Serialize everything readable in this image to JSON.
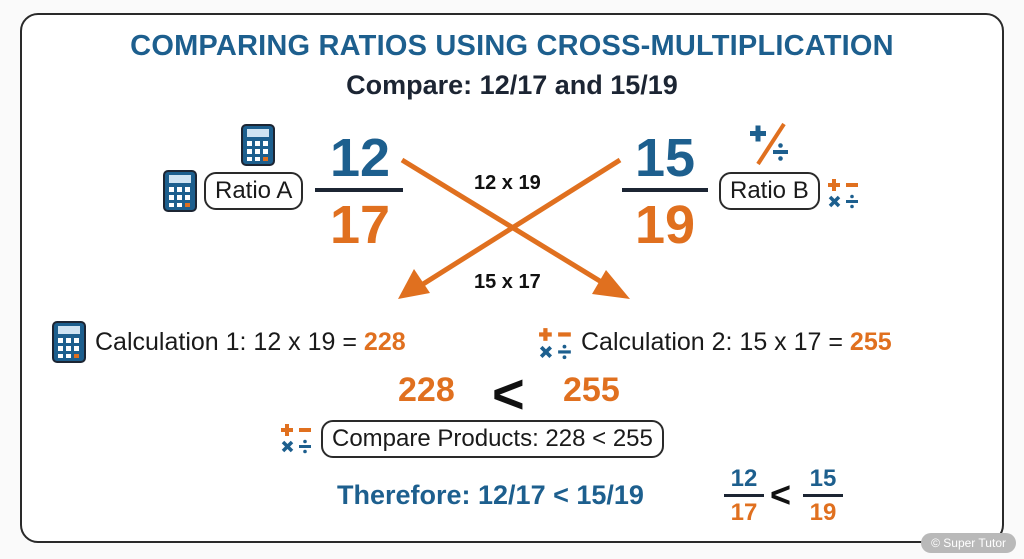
{
  "title": "COMPARING RATIOS USING CROSS-MULTIPLICATION",
  "subtitle": "Compare: 12/17 and 15/19",
  "ratio_a": {
    "label": "Ratio A",
    "numerator": "12",
    "denominator": "17"
  },
  "ratio_b": {
    "label": "Ratio B",
    "numerator": "15",
    "denominator": "19"
  },
  "cross": {
    "top_label": "12 x 19",
    "bottom_label": "15 x 17"
  },
  "calculation_1": {
    "text": "Calculation 1: 12 x 19 = ",
    "result": "228"
  },
  "calculation_2": {
    "text": "Calculation 2: 15 x 17 = ",
    "result": "255"
  },
  "comparison": {
    "left": "228",
    "sign": "<",
    "right": "255"
  },
  "compare_products": "Compare Products: 228 < 255",
  "conclusion": {
    "text": "Therefore: 12/17 < 15/19",
    "left_num": "12",
    "left_den": "17",
    "sign": "<",
    "right_num": "15",
    "right_den": "19"
  },
  "watermark": "© Super Tutor",
  "colors": {
    "blue": "#1d5f8e",
    "orange": "#e0701f",
    "dark": "#1c2533"
  },
  "icons": [
    "calculator-icon",
    "operations-icon",
    "plus-minus-icon",
    "arrow-icon"
  ]
}
